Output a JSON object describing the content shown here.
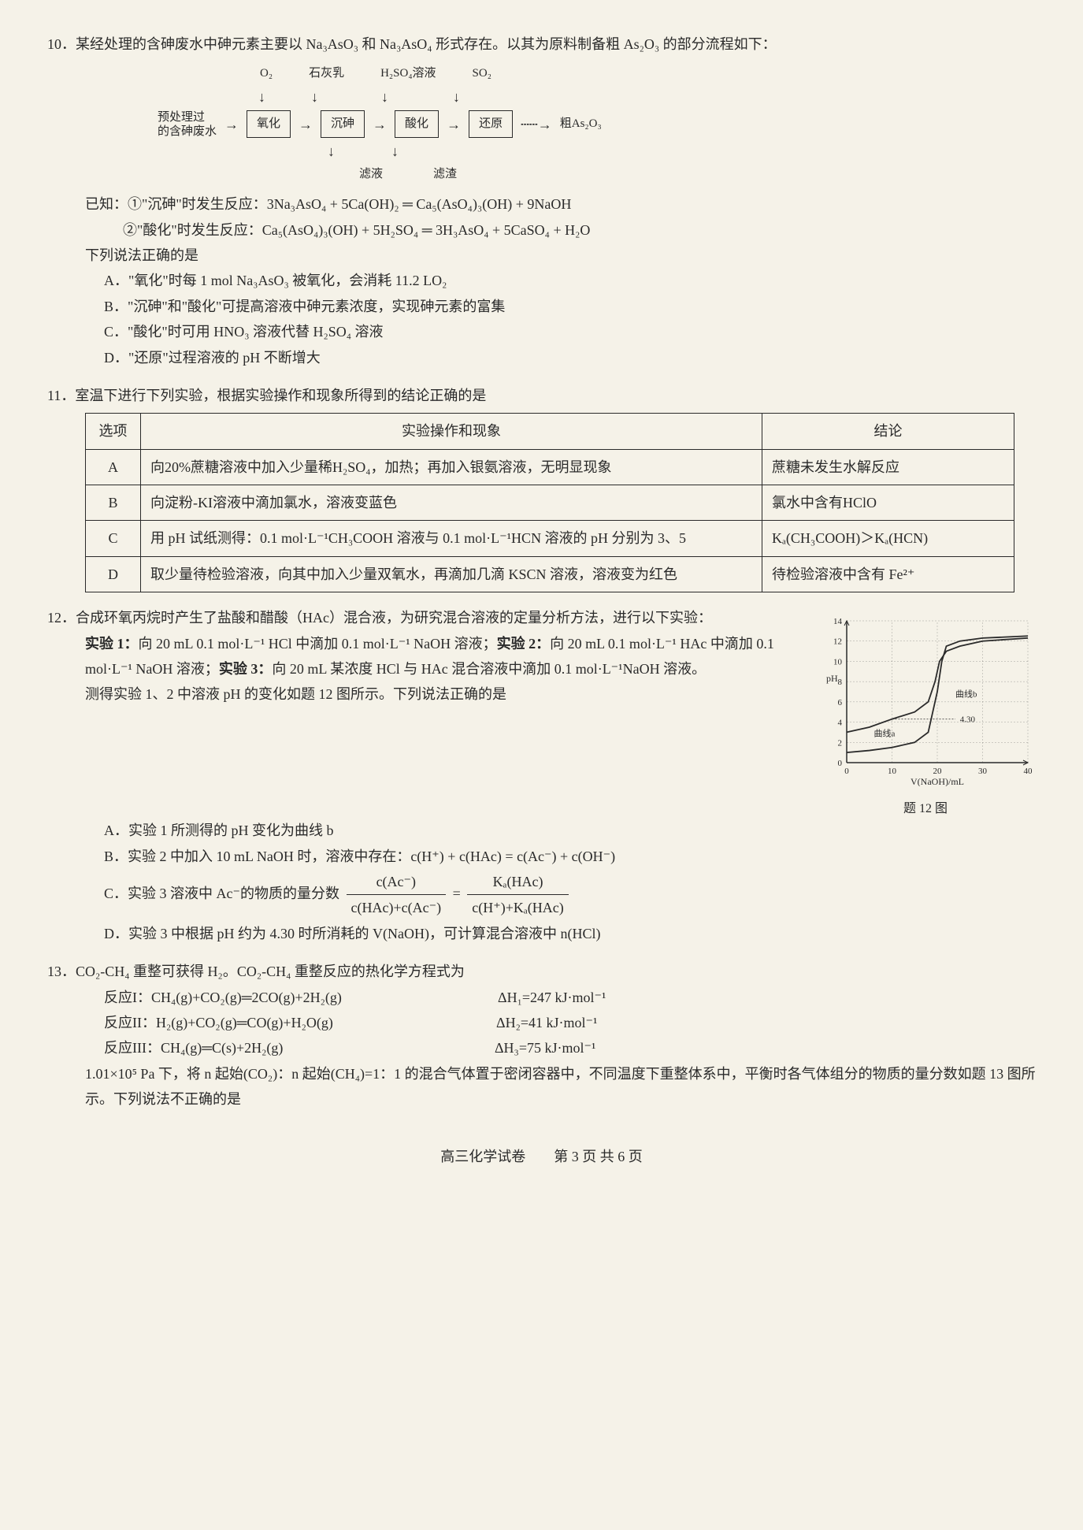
{
  "q10": {
    "num": "10．",
    "intro": "某经处理的含砷废水中砷元素主要以 Na₃AsO₃ 和 Na₃AsO₄ 形式存在。以其为原料制备粗 As₂O₃ 的部分流程如下：",
    "flow": {
      "input": "预处理过\n的含砷废水",
      "top_labels": [
        "O₂",
        "石灰乳",
        "H₂SO₄溶液",
        "SO₂"
      ],
      "boxes": [
        "氧化",
        "沉砷",
        "酸化",
        "还原"
      ],
      "output": "粗As₂O₃",
      "bot_labels": [
        "滤液",
        "滤渣"
      ]
    },
    "known_label": "已知：",
    "known1": "①\"沉砷\"时发生反应：3Na₃AsO₄ + 5Ca(OH)₂ ═ Ca₅(AsO₄)₃(OH) + 9NaOH",
    "known2": "②\"酸化\"时发生反应：Ca₅(AsO₄)₃(OH) + 5H₂SO₄ ═ 3H₃AsO₄ + 5CaSO₄ + H₂O",
    "prompt": "下列说法正确的是",
    "optA": "A．\"氧化\"时每 1 mol Na₃AsO₃ 被氧化，会消耗 11.2 LO₂",
    "optB": "B．\"沉砷\"和\"酸化\"可提高溶液中砷元素浓度，实现砷元素的富集",
    "optC": "C．\"酸化\"时可用 HNO₃ 溶液代替 H₂SO₄ 溶液",
    "optD": "D．\"还原\"过程溶液的 pH 不断增大"
  },
  "q11": {
    "num": "11．",
    "intro": "室温下进行下列实验，根据实验操作和现象所得到的结论正确的是",
    "headers": [
      "选项",
      "实验操作和现象",
      "结论"
    ],
    "rows": [
      {
        "opt": "A",
        "op": "向20%蔗糖溶液中加入少量稀H₂SO₄，加热；再加入银氨溶液，无明显现象",
        "conc": "蔗糖未发生水解反应"
      },
      {
        "opt": "B",
        "op": "向淀粉-KI溶液中滴加氯水，溶液变蓝色",
        "conc": "氯水中含有HClO"
      },
      {
        "opt": "C",
        "op": "用 pH 试纸测得：0.1 mol·L⁻¹CH₃COOH 溶液与 0.1 mol·L⁻¹HCN 溶液的 pH 分别为 3、5",
        "conc": "Kₐ(CH₃COOH)＞Kₐ(HCN)"
      },
      {
        "opt": "D",
        "op": "取少量待检验溶液，向其中加入少量双氧水，再滴加几滴 KSCN 溶液，溶液变为红色",
        "conc": "待检验溶液中含有 Fe²⁺"
      }
    ]
  },
  "q12": {
    "num": "12．",
    "intro": "合成环氧丙烷时产生了盐酸和醋酸（HAc）混合液，为研究混合溶液的定量分析方法，进行以下实验：",
    "exp1_label": "实验 1：",
    "exp1": "向 20 mL 0.1 mol·L⁻¹ HCl 中滴加 0.1 mol·L⁻¹ NaOH 溶液；",
    "exp2_label": "实验 2：",
    "exp2": "向 20 mL 0.1 mol·L⁻¹ HAc 中滴加 0.1 mol·L⁻¹ NaOH 溶液；",
    "exp3_label": "实验 3：",
    "exp3": "向 20 mL 某浓度 HCl 与 HAc 混合溶液中滴加 0.1 mol·L⁻¹NaOH 溶液。",
    "measure": "测得实验 1、2 中溶液 pH 的变化如题 12 图所示。下列说法正确的是",
    "optA": "A．实验 1 所测得的 pH 变化为曲线 b",
    "optB": "B．实验 2 中加入 10 mL NaOH 时，溶液中存在：c(H⁺) + c(HAc) = c(Ac⁻) + c(OH⁻)",
    "optC_pre": "C．实验 3 溶液中 Ac⁻的物质的量分数",
    "optC_num1": "c(Ac⁻)",
    "optC_den1": "c(HAc)+c(Ac⁻)",
    "optC_eq": "=",
    "optC_num2": "Kₐ(HAc)",
    "optC_den2": "c(H⁺)+Kₐ(HAc)",
    "optD": "D．实验 3 中根据 pH 约为 4.30 时所消耗的 V(NaOH)，可计算混合溶液中 n(HCl)",
    "chart": {
      "ylabel": "pH",
      "xlabel": "V(NaOH)/mL",
      "caption": "题 12 图",
      "yticks": [
        0,
        2,
        4,
        6,
        8,
        10,
        12,
        14
      ],
      "xticks": [
        0,
        10,
        20,
        30,
        40
      ],
      "curve_b_label": "曲线b",
      "curve_a_label": "曲线a",
      "point_label": "4.30",
      "line_color": "#2a2a2a",
      "bg_color": "#f5f2e8",
      "curve_a": [
        [
          0,
          1
        ],
        [
          5,
          1.2
        ],
        [
          10,
          1.5
        ],
        [
          15,
          2
        ],
        [
          18,
          3
        ],
        [
          19,
          5
        ],
        [
          20,
          7
        ],
        [
          21,
          10
        ],
        [
          22,
          11.5
        ],
        [
          25,
          12
        ],
        [
          30,
          12.3
        ],
        [
          40,
          12.5
        ]
      ],
      "curve_b": [
        [
          0,
          3
        ],
        [
          5,
          3.5
        ],
        [
          10,
          4.3
        ],
        [
          15,
          5
        ],
        [
          18,
          6
        ],
        [
          19.5,
          8
        ],
        [
          20.5,
          10
        ],
        [
          22,
          11
        ],
        [
          25,
          11.5
        ],
        [
          30,
          12
        ],
        [
          40,
          12.3
        ]
      ]
    }
  },
  "q13": {
    "num": "13．",
    "intro": "CO₂-CH₄ 重整可获得 H₂。CO₂-CH₄ 重整反应的热化学方程式为",
    "r1_label": "反应I：",
    "r1": "CH₄(g)+CO₂(g)═2CO(g)+2H₂(g)",
    "r1_dh": "ΔH₁=247 kJ·mol⁻¹",
    "r2_label": "反应II：",
    "r2": "H₂(g)+CO₂(g)═CO(g)+H₂O(g)",
    "r2_dh": "ΔH₂=41 kJ·mol⁻¹",
    "r3_label": "反应III：",
    "r3": "CH₄(g)═C(s)+2H₂(g)",
    "r3_dh": "ΔH₃=75 kJ·mol⁻¹",
    "cond": "1.01×10⁵ Pa 下，将 n 起始(CO₂)：n 起始(CH₄)=1：1 的混合气体置于密闭容器中，不同温度下重整体系中，平衡时各气体组分的物质的量分数如题 13 图所示。下列说法不正确的是"
  },
  "footer": "高三化学试卷　　第 3 页 共 6 页"
}
